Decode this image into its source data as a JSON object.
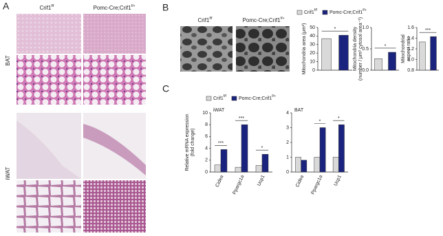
{
  "panel_a": {
    "label": "A",
    "columns": [
      {
        "base": "Crif1",
        "sup": "f/f"
      },
      {
        "base": "Pomc-Cre;Crif1",
        "sup": "f/+"
      }
    ],
    "rows": [
      "BAT",
      "iWAT"
    ]
  },
  "panel_b": {
    "label": "B",
    "columns": [
      {
        "base": "Crif1",
        "sup": "f/f"
      },
      {
        "base": "Pomc-Cre;Crif1",
        "sup": "f/+"
      }
    ]
  },
  "panel_c": {
    "label": "C"
  },
  "chart_data": [
    {
      "type": "bar",
      "ylabel": [
        "Mitochondria area (μm²)"
      ],
      "ylim": [
        0,
        50
      ],
      "yticks": [
        0,
        10,
        20,
        30,
        40,
        50
      ],
      "series": [
        {
          "name": {
            "base": "Crif1",
            "sup": "f/f"
          },
          "color": "#d9d9d9",
          "values": [
            37
          ]
        },
        {
          "name": {
            "base": "Pomc-Cre;Crif1",
            "sup": "f/+"
          },
          "color": "#1a237e",
          "values": [
            41
          ]
        }
      ],
      "annotations": [
        {
          "label": "*"
        }
      ]
    },
    {
      "type": "bar",
      "ylabel": [
        "Mitochondria density",
        "(number / μm² cytosol area⁻¹)"
      ],
      "ylim": [
        0,
        1
      ],
      "yticks": [
        {
          "value": 0,
          "label": "0.0"
        },
        0.5,
        {
          "value": 1,
          "label": "1.0"
        }
      ],
      "series": [
        {
          "color": "#d9d9d9",
          "values": [
            0.27
          ]
        },
        {
          "color": "#1a237e",
          "values": [
            0.42
          ]
        }
      ],
      "annotations": [
        {
          "label": "*"
        }
      ]
    },
    {
      "type": "bar",
      "ylabel": [
        "Mitochondrial",
        "aspect ratio"
      ],
      "ylim": [
        0.8,
        1.6
      ],
      "yticks": [
        0.8,
        {
          "value": 1,
          "label": "1.0"
        },
        1.2,
        1.4,
        1.6
      ],
      "series": [
        {
          "color": "#d9d9d9",
          "values": [
            1.33
          ]
        },
        {
          "color": "#1a237e",
          "values": [
            1.43
          ]
        }
      ],
      "annotations": [
        {
          "label": "***"
        }
      ]
    },
    {
      "type": "bar",
      "title": "iWAT",
      "ylabel": [
        "Relative mRNA expression",
        "(fold change)"
      ],
      "ylim": [
        0,
        10
      ],
      "yticks": [
        0,
        2,
        4,
        6,
        8,
        10
      ],
      "categories": [
        "Cidea",
        "Ppargc1a",
        "Ucp1"
      ],
      "series": [
        {
          "name": {
            "base": "Crif1",
            "sup": "f/f"
          },
          "color": "#d9d9d9",
          "values": [
            1.2,
            0.8,
            1.1
          ]
        },
        {
          "name": {
            "base": "Pomc-Cre;Crif1",
            "sup": "f/+"
          },
          "color": "#1a237e",
          "values": [
            3.8,
            8.0,
            3.0
          ]
        }
      ],
      "annotations": [
        {
          "category": 0,
          "label": "***"
        },
        {
          "category": 1,
          "label": "***"
        },
        {
          "category": 2,
          "label": "*"
        }
      ]
    },
    {
      "type": "bar",
      "title": "BAT",
      "ylim": [
        0,
        4
      ],
      "yticks": [
        0,
        1,
        2,
        3,
        4
      ],
      "categories": [
        "Cidea",
        "Ppargc1a",
        "Ucp1"
      ],
      "series": [
        {
          "color": "#d9d9d9",
          "values": [
            1.0,
            1.0,
            1.0
          ]
        },
        {
          "color": "#1a237e",
          "values": [
            0.8,
            3.0,
            3.2
          ]
        }
      ],
      "annotations": [
        {
          "category": 1,
          "label": "*"
        },
        {
          "category": 2,
          "label": "*"
        }
      ]
    }
  ]
}
